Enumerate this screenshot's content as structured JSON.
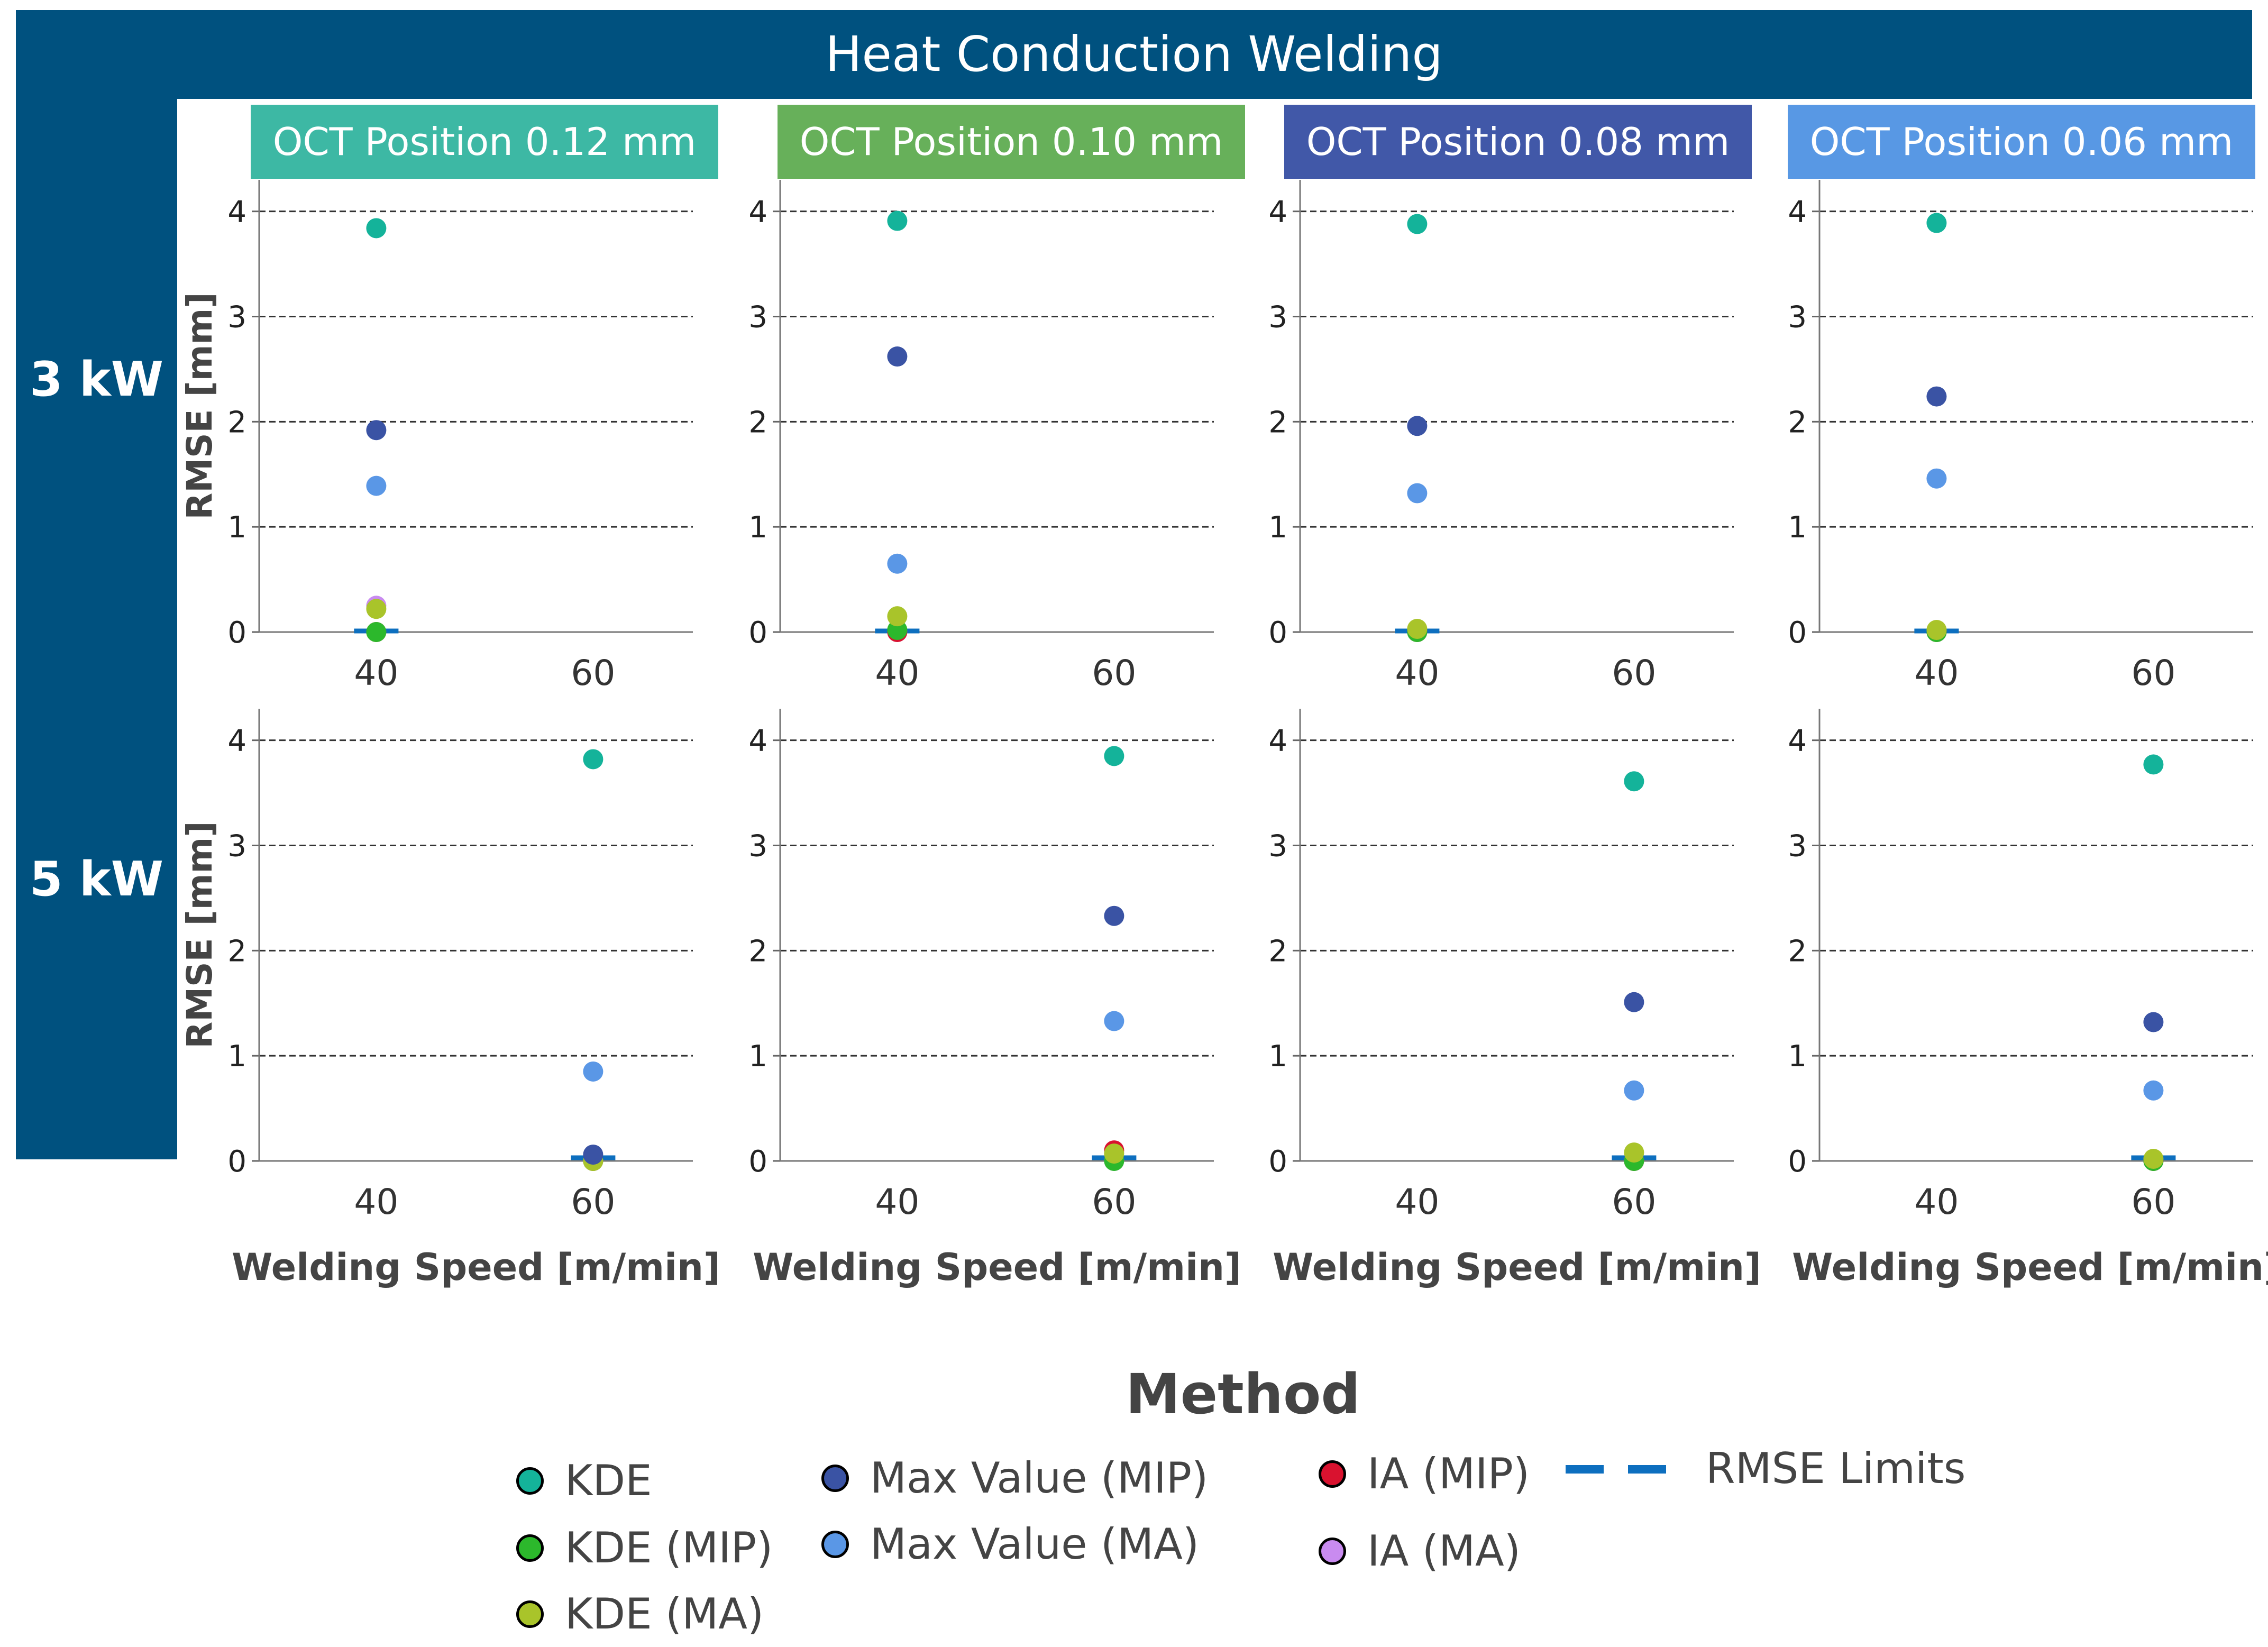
{
  "title": "Heat Conduction Welding",
  "rows": [
    {
      "label": "3 kW"
    },
    {
      "label": "5 kW"
    }
  ],
  "columns": [
    {
      "label": "OCT Position 0.12 mm",
      "color": "#3db8a4"
    },
    {
      "label": "OCT Position 0.10 mm",
      "color": "#67b05a"
    },
    {
      "label": "OCT Position 0.08 mm",
      "color": "#4158a8"
    },
    {
      "label": "OCT Position 0.06 mm",
      "color": "#5898e4"
    }
  ],
  "legend": {
    "title": "Method",
    "items": [
      {
        "name": "KDE",
        "color": "#14b39a",
        "kind": "dot"
      },
      {
        "name": "KDE (MIP)",
        "color": "#2cb82c",
        "kind": "dot"
      },
      {
        "name": "KDE (MA)",
        "color": "#a9c42a",
        "kind": "dot"
      },
      {
        "name": "Max Value (MIP)",
        "color": "#3a53a4",
        "kind": "dot"
      },
      {
        "name": "Max Value (MA)",
        "color": "#5a97e6",
        "kind": "dot"
      },
      {
        "name": "IA (MIP)",
        "color": "#d9122f",
        "kind": "dot"
      },
      {
        "name": "IA (MA)",
        "color": "#c98bf0",
        "kind": "dot"
      },
      {
        "name": "RMSE Limits",
        "color": "#0d6fbf",
        "kind": "dash"
      }
    ]
  },
  "chart_data": {
    "type": "scatter",
    "xlabel": "Welding Speed [m/min]",
    "ylabel": "RMSE [mm]",
    "x_categories": [
      "40",
      "60"
    ],
    "y_ticks": [
      "0",
      "1",
      "2",
      "3",
      "4"
    ],
    "ylim": [
      0,
      4.3
    ],
    "grid": "horizontal dashed",
    "panels": [
      {
        "row": "3 kW",
        "column": "OCT Position 0.12 mm",
        "x": "40",
        "points": {
          "KDE": 3.84,
          "KDE (MIP)": 0.0,
          "KDE (MA)": 0.22,
          "Max Value (MIP)": 1.92,
          "Max Value (MA)": 1.39,
          "IA (MIP)": 0.0,
          "IA (MA)": 0.25
        },
        "rmse_limit": 0.01
      },
      {
        "row": "3 kW",
        "column": "OCT Position 0.10 mm",
        "x": "40",
        "points": {
          "KDE": 3.91,
          "KDE (MIP)": 0.02,
          "KDE (MA)": 0.15,
          "Max Value (MIP)": 2.62,
          "Max Value (MA)": 0.65,
          "IA (MIP)": 0.0,
          "IA (MA)": 0.0
        },
        "rmse_limit": 0.01
      },
      {
        "row": "3 kW",
        "column": "OCT Position 0.08 mm",
        "x": "40",
        "points": {
          "KDE": 3.88,
          "KDE (MIP)": 0.0,
          "KDE (MA)": 0.03,
          "Max Value (MIP)": 1.96,
          "Max Value (MA)": 1.32,
          "IA (MIP)": 0.0,
          "IA (MA)": 0.0
        },
        "rmse_limit": 0.01
      },
      {
        "row": "3 kW",
        "column": "OCT Position 0.06 mm",
        "x": "40",
        "points": {
          "KDE": 3.89,
          "KDE (MIP)": 0.0,
          "KDE (MA)": 0.02,
          "Max Value (MIP)": 2.24,
          "Max Value (MA)": 1.46,
          "IA (MIP)": 0.0,
          "IA (MA)": 0.0
        },
        "rmse_limit": 0.01
      },
      {
        "row": "5 kW",
        "column": "OCT Position 0.12 mm",
        "x": "60",
        "points": {
          "KDE": 3.82,
          "KDE (MIP)": 0.0,
          "KDE (MA)": 0.0,
          "Max Value (MIP)": 0.06,
          "Max Value (MA)": 0.85,
          "IA (MIP)": 0.0,
          "IA (MA)": 0.0
        },
        "rmse_limit": 0.03
      },
      {
        "row": "5 kW",
        "column": "OCT Position 0.10 mm",
        "x": "60",
        "points": {
          "KDE": 3.85,
          "KDE (MIP)": 0.0,
          "KDE (MA)": 0.07,
          "Max Value (MIP)": 2.33,
          "Max Value (MA)": 1.33,
          "IA (MIP)": 0.1,
          "IA (MA)": 0.0
        },
        "rmse_limit": 0.03
      },
      {
        "row": "5 kW",
        "column": "OCT Position 0.08 mm",
        "x": "60",
        "points": {
          "KDE": 3.61,
          "KDE (MIP)": 0.0,
          "KDE (MA)": 0.08,
          "Max Value (MIP)": 1.51,
          "Max Value (MA)": 0.67,
          "IA (MIP)": 0.0,
          "IA (MA)": 0.0
        },
        "rmse_limit": 0.03
      },
      {
        "row": "5 kW",
        "column": "OCT Position 0.06 mm",
        "x": "60",
        "points": {
          "KDE": 3.77,
          "KDE (MIP)": 0.0,
          "KDE (MA)": 0.02,
          "Max Value (MIP)": 1.32,
          "Max Value (MA)": 0.67,
          "IA (MIP)": 0.0,
          "IA (MA)": 0.0
        },
        "rmse_limit": 0.03
      }
    ]
  }
}
